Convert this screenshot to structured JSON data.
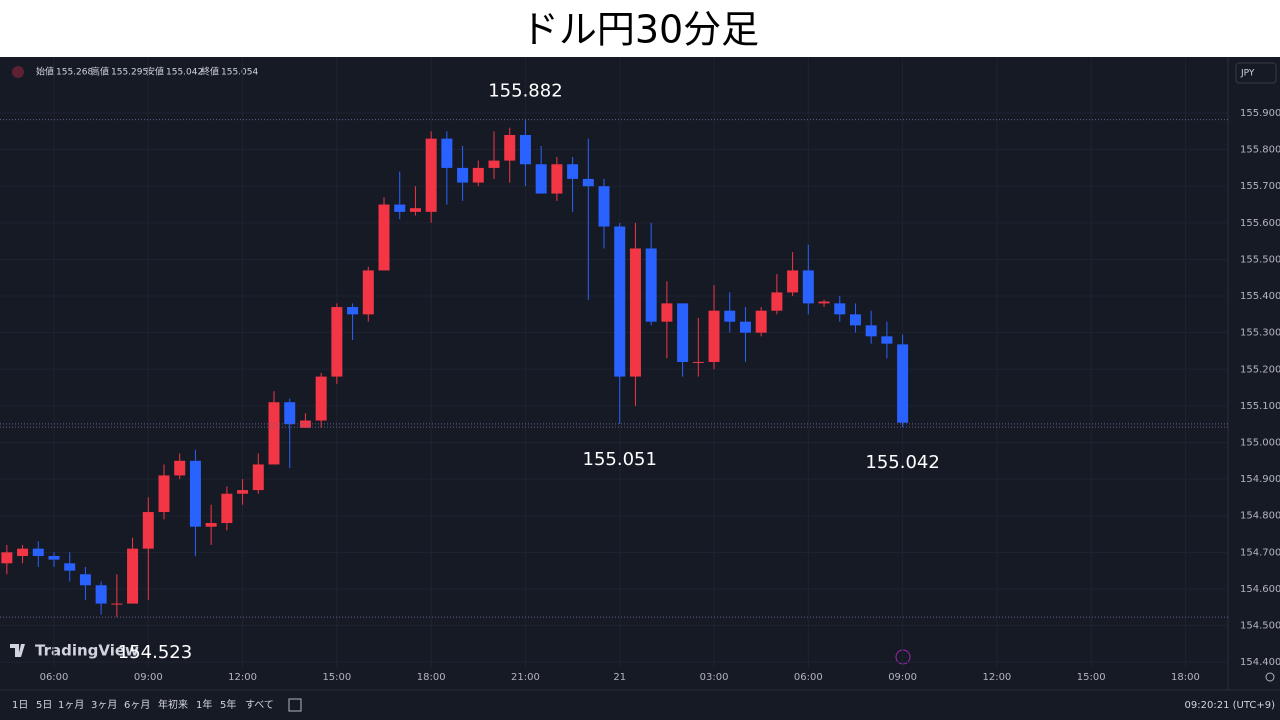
{
  "chart_data": {
    "type": "candlestick",
    "title": "ドル円30分足",
    "ohlc_header": [
      {
        "label": "始値",
        "value": 155.268
      },
      {
        "label": "高値",
        "value": 155.295
      },
      {
        "label": "安値",
        "value": 155.042
      },
      {
        "label": "終値",
        "value": 155.054
      }
    ],
    "currency": "JPY",
    "x": [
      4.5,
      5,
      5.5,
      6,
      6.5,
      7,
      7.5,
      8,
      8.5,
      9,
      9.5,
      10,
      10.5,
      11,
      11.5,
      12,
      12.5,
      13,
      13.5,
      14,
      14.5,
      15,
      15.5,
      16,
      16.5,
      17,
      17.5,
      18,
      18.5,
      19,
      19.5,
      20,
      20.5,
      21,
      21.5,
      22,
      22.5,
      23,
      23.5,
      24,
      24.5,
      25,
      25.5,
      26,
      26.5,
      27,
      27.5,
      28,
      28.5,
      29,
      29.5,
      30,
      30.5,
      31,
      31.5,
      32,
      32.5,
      33
    ],
    "open": [
      154.67,
      154.69,
      154.71,
      154.69,
      154.67,
      154.64,
      154.61,
      154.56,
      154.56,
      154.71,
      154.81,
      154.91,
      154.95,
      154.77,
      154.78,
      154.86,
      154.87,
      154.94,
      155.11,
      155.04,
      155.06,
      155.18,
      155.37,
      155.35,
      155.47,
      155.65,
      155.63,
      155.63,
      155.83,
      155.75,
      155.71,
      155.75,
      155.77,
      155.84,
      155.76,
      155.68,
      155.76,
      155.72,
      155.7,
      155.59,
      155.18,
      155.53,
      155.33,
      155.38,
      155.22,
      155.22,
      155.36,
      155.33,
      155.3,
      155.36,
      155.41,
      155.47,
      155.38,
      155.38,
      155.35,
      155.32,
      155.29,
      155.268
    ],
    "high": [
      154.72,
      154.72,
      154.73,
      154.7,
      154.7,
      154.66,
      154.62,
      154.64,
      154.74,
      154.85,
      154.94,
      154.97,
      154.98,
      154.83,
      154.88,
      154.9,
      154.97,
      155.14,
      155.12,
      155.08,
      155.19,
      155.38,
      155.38,
      155.48,
      155.67,
      155.74,
      155.7,
      155.85,
      155.85,
      155.81,
      155.77,
      155.85,
      155.86,
      155.882,
      155.81,
      155.78,
      155.78,
      155.83,
      155.72,
      155.6,
      155.6,
      155.6,
      155.44,
      155.38,
      155.34,
      155.43,
      155.41,
      155.37,
      155.37,
      155.46,
      155.52,
      155.54,
      155.39,
      155.4,
      155.38,
      155.36,
      155.33,
      155.295
    ],
    "low": [
      154.64,
      154.67,
      154.66,
      154.66,
      154.62,
      154.57,
      154.53,
      154.523,
      154.56,
      154.57,
      154.79,
      154.9,
      154.69,
      154.72,
      154.76,
      154.83,
      154.86,
      154.94,
      154.93,
      155.04,
      155.04,
      155.16,
      155.28,
      155.33,
      155.47,
      155.61,
      155.62,
      155.6,
      155.65,
      155.66,
      155.7,
      155.72,
      155.71,
      155.7,
      155.68,
      155.66,
      155.63,
      155.39,
      155.53,
      155.051,
      155.1,
      155.32,
      155.23,
      155.18,
      155.18,
      155.2,
      155.3,
      155.22,
      155.29,
      155.35,
      155.4,
      155.35,
      155.37,
      155.33,
      155.3,
      155.27,
      155.23,
      155.042
    ],
    "close": [
      154.7,
      154.71,
      154.69,
      154.68,
      154.65,
      154.61,
      154.56,
      154.56,
      154.71,
      154.81,
      154.91,
      154.95,
      154.77,
      154.78,
      154.86,
      154.87,
      154.94,
      155.11,
      155.05,
      155.06,
      155.18,
      155.37,
      155.35,
      155.47,
      155.65,
      155.63,
      155.64,
      155.83,
      155.75,
      155.71,
      155.75,
      155.77,
      155.84,
      155.76,
      155.68,
      155.76,
      155.72,
      155.7,
      155.59,
      155.18,
      155.53,
      155.33,
      155.38,
      155.22,
      155.22,
      155.36,
      155.33,
      155.3,
      155.36,
      155.41,
      155.47,
      155.38,
      155.385,
      155.35,
      155.32,
      155.29,
      155.27,
      155.054
    ],
    "up_color": "#f23645",
    "down_color": "#2962ff",
    "annotations": [
      155.882,
      155.051,
      154.523,
      155.042
    ],
    "xlim": [
      4.282,
      43.353
    ],
    "xticks": [
      {
        "value": 6,
        "label": "06:00"
      },
      {
        "value": 9,
        "label": "09:00"
      },
      {
        "value": 12,
        "label": "12:00"
      },
      {
        "value": 15,
        "label": "15:00"
      },
      {
        "value": 18,
        "label": "18:00"
      },
      {
        "value": 21,
        "label": "21:00"
      },
      {
        "value": 24,
        "label": "21"
      },
      {
        "value": 27,
        "label": "03:00"
      },
      {
        "value": 30,
        "label": "06:00"
      },
      {
        "value": 33,
        "label": "09:00"
      },
      {
        "value": 36,
        "label": "12:00"
      },
      {
        "value": 39,
        "label": "15:00"
      },
      {
        "value": 42,
        "label": "18:00"
      }
    ],
    "ylim": [
      154.384,
      156.053
    ],
    "yticks": [
      {
        "value": 154.4,
        "label": "154.400"
      },
      {
        "value": 154.5,
        "label": "154.500"
      },
      {
        "value": 154.6,
        "label": "154.600"
      },
      {
        "value": 154.7,
        "label": "154.700"
      },
      {
        "value": 154.8,
        "label": "154.800"
      },
      {
        "value": 154.9,
        "label": "154.900"
      },
      {
        "value": 155.0,
        "label": "155.000"
      },
      {
        "value": 155.1,
        "label": "155.100"
      },
      {
        "value": 155.2,
        "label": "155.200"
      },
      {
        "value": 155.3,
        "label": "155.300"
      },
      {
        "value": 155.4,
        "label": "155.400"
      },
      {
        "value": 155.5,
        "label": "155.500"
      },
      {
        "value": 155.6,
        "label": "155.600"
      },
      {
        "value": 155.7,
        "label": "155.700"
      },
      {
        "value": 155.8,
        "label": "155.800"
      },
      {
        "value": 155.9,
        "label": "155.900"
      }
    ],
    "grid": true
  },
  "ui": {
    "logo": "TradingView",
    "ranges": [
      "1日",
      "5日",
      "1ヶ月",
      "3ヶ月",
      "6ヶ月",
      "年初来",
      "1年",
      "5年",
      "すべて"
    ],
    "clock": "09:20:21 (UTC+9)"
  }
}
